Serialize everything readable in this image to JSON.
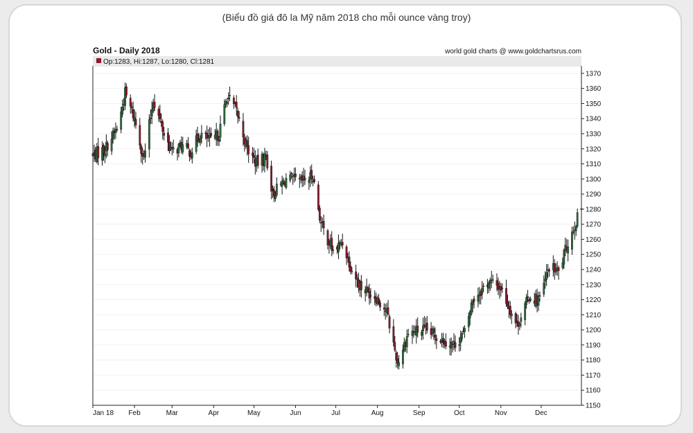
{
  "caption": "(Biểu đồ giá đô la Mỹ năm 2018 cho mỗi ounce vàng troy)",
  "chart_data": {
    "type": "candlestick",
    "title": "Gold - Daily 2018",
    "source": "world gold charts @ www.goldchartsrus.com",
    "legend": {
      "text": "Op:1283, Hi:1287, Lo:1280, Cl:1281",
      "placement": "top-left"
    },
    "ylim": [
      1150,
      1375
    ],
    "y_ticks": [
      1150,
      1160,
      1170,
      1180,
      1190,
      1200,
      1210,
      1220,
      1230,
      1240,
      1250,
      1260,
      1270,
      1280,
      1290,
      1300,
      1310,
      1320,
      1330,
      1340,
      1350,
      1360,
      1370
    ],
    "y_axis_side": "right",
    "x_tick_labels": [
      "Jan 18",
      "Feb",
      "Mar",
      "Apr",
      "May",
      "Jun",
      "Jul",
      "Aug",
      "Sep",
      "Oct",
      "Nov",
      "Dec"
    ],
    "colors": {
      "up": "#2e6b3c",
      "down": "#8b1a2b",
      "wick": "#111111",
      "legend_swatch": "#8b1a2b"
    },
    "close_anchors": [
      [
        "2018-01-02",
        1316
      ],
      [
        "2018-01-10",
        1320
      ],
      [
        "2018-01-20",
        1335
      ],
      [
        "2018-01-25",
        1357
      ],
      [
        "2018-02-01",
        1340
      ],
      [
        "2018-02-08",
        1313
      ],
      [
        "2018-02-15",
        1353
      ],
      [
        "2018-02-23",
        1330
      ],
      [
        "2018-03-01",
        1318
      ],
      [
        "2018-03-08",
        1322
      ],
      [
        "2018-03-15",
        1318
      ],
      [
        "2018-03-22",
        1330
      ],
      [
        "2018-03-30",
        1325
      ],
      [
        "2018-04-05",
        1330
      ],
      [
        "2018-04-11",
        1355
      ],
      [
        "2018-04-18",
        1345
      ],
      [
        "2018-04-26",
        1320
      ],
      [
        "2018-05-03",
        1310
      ],
      [
        "2018-05-10",
        1315
      ],
      [
        "2018-05-15",
        1290
      ],
      [
        "2018-05-25",
        1300
      ],
      [
        "2018-06-05",
        1298
      ],
      [
        "2018-06-14",
        1302
      ],
      [
        "2018-06-20",
        1270
      ],
      [
        "2018-06-29",
        1252
      ],
      [
        "2018-07-06",
        1258
      ],
      [
        "2018-07-13",
        1240
      ],
      [
        "2018-07-20",
        1228
      ],
      [
        "2018-07-31",
        1222
      ],
      [
        "2018-08-08",
        1212
      ],
      [
        "2018-08-16",
        1178
      ],
      [
        "2018-08-24",
        1198
      ],
      [
        "2018-09-05",
        1200
      ],
      [
        "2018-09-14",
        1196
      ],
      [
        "2018-09-27",
        1190
      ],
      [
        "2018-10-05",
        1198
      ],
      [
        "2018-10-11",
        1220
      ],
      [
        "2018-10-23",
        1232
      ],
      [
        "2018-11-01",
        1228
      ],
      [
        "2018-11-13",
        1203
      ],
      [
        "2018-11-22",
        1222
      ],
      [
        "2018-11-30",
        1220
      ],
      [
        "2018-12-07",
        1242
      ],
      [
        "2018-12-14",
        1238
      ],
      [
        "2018-12-21",
        1258
      ],
      [
        "2018-12-31",
        1281
      ]
    ]
  }
}
